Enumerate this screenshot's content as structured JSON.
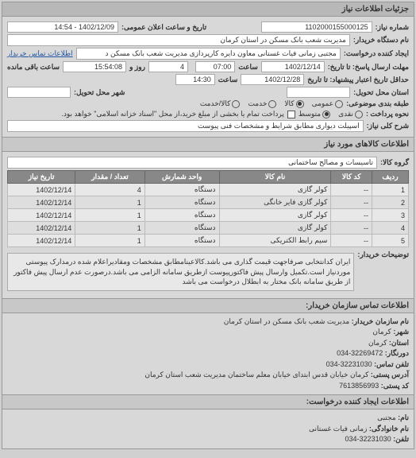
{
  "panel_title": "جزئیات اطلاعات نیاز",
  "header": {
    "req_number_label": "شماره نیاز:",
    "req_number": "1102000155000125",
    "pub_datetime_label": "تاریخ و ساعت اعلان عمومی:",
    "pub_datetime": "1402/12/09 - 14:54"
  },
  "buyer": {
    "org_label": "نام دستگاه خریدار:",
    "org": "مدیریت شعب بانک مسکن در استان کرمان",
    "requester_label": "ایجاد کننده درخواست:",
    "requester": "مجتبی زمانی فیات غستانی معاون دایره کارپردازی مدیریت شعب بانک مسکن د",
    "contact_link": "اطلاعات تماس خریدار"
  },
  "deadlines": {
    "send_until_label": "مهلت ارسال پاسخ: تا تاریخ:",
    "send_date": "1402/12/14",
    "send_time_label": "ساعت",
    "send_time": "07:00",
    "remaining_days": "4",
    "remaining_days_label": "روز و",
    "remaining_time": "15:54:08",
    "remaining_suffix": "ساعت باقی مانده",
    "valid_until_label": "حداقل تاریخ اعتبار پیشنهاد: تا تاریخ",
    "valid_date": "1402/12/28",
    "valid_time_label": "ساعت",
    "valid_time": "14:30"
  },
  "location": {
    "province_label": "استان محل تحویل:",
    "city_label": "شهر محل تحویل:"
  },
  "budget": {
    "label": "طبقه بندی موضوعی:",
    "options": [
      "عمومی",
      "کالا",
      "خدمت",
      "کالا/خدمت"
    ],
    "selected_index": 1
  },
  "payment": {
    "label": "نحوه پرداخت :",
    "options": [
      "نقدی",
      "متوسط"
    ],
    "selected_index": 1,
    "credit_checkbox_label": "پرداخت تمام یا بخشی از مبلغ خرید،از محل \"اسناد خزانه اسلامی\" خواهد بود."
  },
  "desc": {
    "label": "شرح کلی نیاز:",
    "value": "اسپیلت دیواری مطابق شرایط و مشخصات فنی پیوست"
  },
  "goods_section_title": "اطلاعات کالاهای مورد نیاز",
  "goods_group": {
    "label": "گروه کالا:",
    "value": "تاسیسات و مصالح ساختمانی"
  },
  "table": {
    "columns": [
      "ردیف",
      "کد کالا",
      "نام کالا",
      "واحد شمارش",
      "تعداد / مقدار",
      "تاریخ نیاز"
    ],
    "rows": [
      [
        "1",
        "--",
        "کولر گازی",
        "دستگاه",
        "4",
        "1402/12/14"
      ],
      [
        "2",
        "--",
        "کولر گازی فایر خانگی",
        "دستگاه",
        "1",
        "1402/12/14"
      ],
      [
        "3",
        "--",
        "کولر گازی",
        "دستگاه",
        "1",
        "1402/12/14"
      ],
      [
        "4",
        "--",
        "کولر گازی",
        "دستگاه",
        "1",
        "1402/12/14"
      ],
      [
        "5",
        "--",
        "سیم رابط الکتریکی",
        "دستگاه",
        "1",
        "1402/12/14"
      ]
    ]
  },
  "note": {
    "label": "توضیحات خریدار:",
    "text": "ایران کدانتخابی صرفاجهت قیمت گذاری می باشد.کالاعینامطابق مشخصات ومقادیراعلام شده درمدارک پیوستی موردنیاز است.تکمیل وارسال پیش فاکتورپیوست ازطریق سامانه الزامی می باشد.درصورت عدم ارسال پیش فاکتور از طریق سامانه بانک مختار به ابطلال درخواست می باشد"
  },
  "contact_section_title": "اطلاعات تماس سازمان خریدار:",
  "contact": {
    "org_name_label": "نام سازمان خریدار:",
    "org_name": "مدیریت شعب بانک مسکن در استان کرمان",
    "city_label": "شهر:",
    "city": "کرمان",
    "province_label": "استان:",
    "province": "کرمان",
    "fax_label": "دورنگار:",
    "fax": "32269472-034",
    "phone_label": "تلفن تماس:",
    "phone": "32231030-034",
    "address_label": "آدرس پستی:",
    "address": "کرمان خیابان قدس ابتدای خیابان معلم ساختمان مدیریت شعب استان کرمان",
    "postal_label": "کد پستی:",
    "postal": "7613856993"
  },
  "creator_section_title": "اطلاعات ایجاد کننده درخواست:",
  "creator": {
    "name_label": "نام:",
    "name": "مجتبی",
    "family_label": "نام خانوادگی:",
    "family": "زمانی فیات غستانی",
    "phone_label": "تلفن:",
    "phone": "32231030-034"
  }
}
